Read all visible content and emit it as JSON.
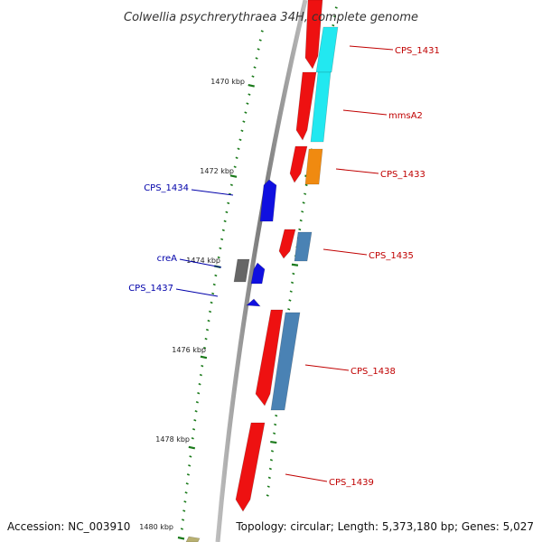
{
  "title": "Colwellia psychrerythraea 34H, complete genome",
  "footer": {
    "accession": "Accession: NC_003910",
    "topology": "Topology: circular; Length: 5,373,180 bp; Genes: 5,027"
  },
  "colors": {
    "backbone": "#7a7a7a",
    "tick": "#1a7a1a",
    "forward_label": "#c00000",
    "reverse_label": "#0000aa",
    "red": "#ee1111",
    "cyan": "#22e8f0",
    "orange": "#f08a10",
    "steel": "#4a82b4",
    "blue": "#1010e0",
    "gray": "#666666",
    "olive": "#b8b070"
  },
  "tick_labels": [
    "1470 kbp",
    "1472 kbp",
    "1474 kbp",
    "1476 kbp",
    "1478 kbp",
    "1480 kbp"
  ],
  "gene_labels": [
    {
      "text": "CPS_1431",
      "strand": "forward"
    },
    {
      "text": "mmsA2",
      "strand": "forward"
    },
    {
      "text": "CPS_1433",
      "strand": "forward"
    },
    {
      "text": "CPS_1434",
      "strand": "reverse"
    },
    {
      "text": "CPS_1435",
      "strand": "forward"
    },
    {
      "text": "creA",
      "strand": "reverse"
    },
    {
      "text": "CPS_1437",
      "strand": "reverse"
    },
    {
      "text": "CPS_1438",
      "strand": "forward"
    },
    {
      "text": "CPS_1439",
      "strand": "forward"
    }
  ]
}
